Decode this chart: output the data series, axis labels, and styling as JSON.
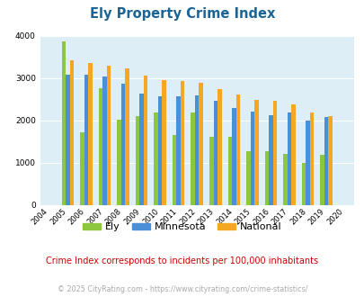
{
  "title": "Ely Property Crime Index",
  "title_color": "#1a6496",
  "years": [
    2004,
    2005,
    2006,
    2007,
    2008,
    2009,
    2010,
    2011,
    2012,
    2013,
    2014,
    2015,
    2016,
    2017,
    2018,
    2019,
    2020
  ],
  "ely": [
    0,
    3870,
    1720,
    2760,
    2020,
    2090,
    2180,
    1650,
    2180,
    1610,
    1620,
    1260,
    1270,
    1200,
    1000,
    1180,
    0
  ],
  "minnesota": [
    0,
    3080,
    3080,
    3030,
    2860,
    2630,
    2570,
    2560,
    2580,
    2450,
    2290,
    2210,
    2120,
    2190,
    1990,
    2080,
    0
  ],
  "national": [
    0,
    3420,
    3360,
    3280,
    3220,
    3060,
    2960,
    2920,
    2880,
    2730,
    2600,
    2490,
    2450,
    2380,
    2190,
    2100,
    0
  ],
  "ely_color": "#8dc63f",
  "minnesota_color": "#4a90d9",
  "national_color": "#f5a623",
  "bg_color": "#ddeef6",
  "ylim": [
    0,
    4000
  ],
  "yticks": [
    0,
    1000,
    2000,
    3000,
    4000
  ],
  "note": "Crime Index corresponds to incidents per 100,000 inhabitants",
  "note_color": "#cc0000",
  "footer": "© 2025 CityRating.com - https://www.cityrating.com/crime-statistics/",
  "footer_color": "#aaaaaa",
  "bar_width": 0.22,
  "legend_labels": [
    "Ely",
    "Minnesota",
    "National"
  ]
}
